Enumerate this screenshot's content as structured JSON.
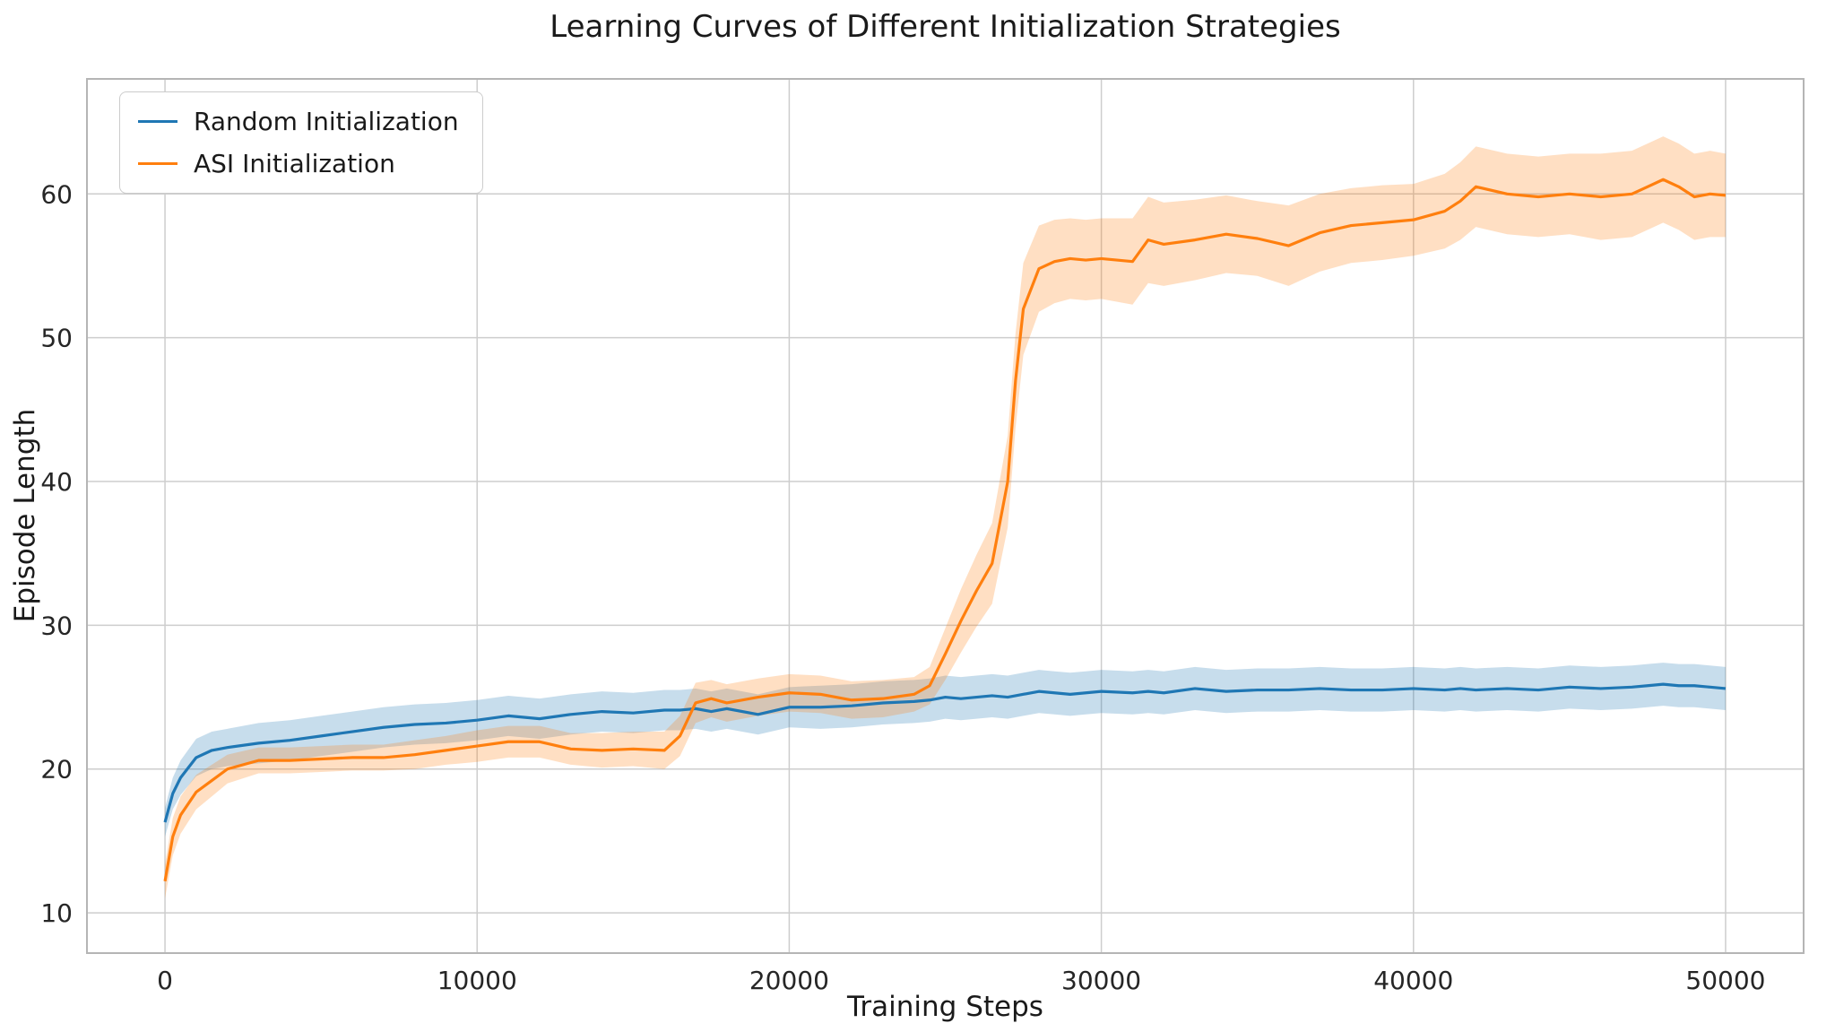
{
  "chart_data": {
    "type": "line",
    "title": "Learning Curves of Different Initialization Strategies",
    "xlabel": "Training Steps",
    "ylabel": "Episode Length",
    "xlim": [
      -2500,
      52500
    ],
    "ylim": [
      7.2,
      68.0
    ],
    "xticks": [
      0,
      10000,
      20000,
      30000,
      40000,
      50000
    ],
    "yticks": [
      10,
      20,
      30,
      40,
      50,
      60
    ],
    "grid_on": true,
    "legend_position": "upper left",
    "grid_color": "#cdcdcd",
    "spine_color": "#b5b5b5",
    "tick_color": "#262626",
    "x": [
      0,
      250,
      500,
      1000,
      1500,
      2000,
      3000,
      4000,
      5000,
      6000,
      7000,
      8000,
      9000,
      10000,
      11000,
      12000,
      13000,
      14000,
      15000,
      16000,
      16500,
      17000,
      17500,
      18000,
      19000,
      20000,
      21000,
      22000,
      23000,
      24000,
      24500,
      25000,
      25500,
      26000,
      26500,
      27000,
      27250,
      27500,
      28000,
      28500,
      29000,
      29500,
      30000,
      31000,
      31500,
      32000,
      33000,
      34000,
      35000,
      36000,
      37000,
      38000,
      39000,
      40000,
      41000,
      41500,
      42000,
      43000,
      44000,
      45000,
      46000,
      47000,
      47500,
      48000,
      48500,
      49000,
      49500,
      50000
    ],
    "series": [
      {
        "name": "Random Initialization",
        "color": "#1f77b4",
        "mean": [
          16.3,
          18.3,
          19.4,
          20.8,
          21.3,
          21.5,
          21.8,
          22.0,
          22.3,
          22.6,
          22.9,
          23.1,
          23.2,
          23.4,
          23.7,
          23.5,
          23.8,
          24.0,
          23.9,
          24.1,
          24.1,
          24.2,
          24.0,
          24.2,
          23.8,
          24.3,
          24.3,
          24.4,
          24.6,
          24.7,
          24.8,
          25.0,
          24.9,
          25.0,
          25.1,
          25.0,
          25.1,
          25.2,
          25.4,
          25.3,
          25.2,
          25.3,
          25.4,
          25.3,
          25.4,
          25.3,
          25.6,
          25.4,
          25.5,
          25.5,
          25.6,
          25.5,
          25.5,
          25.6,
          25.5,
          25.6,
          25.5,
          25.6,
          25.5,
          25.7,
          25.6,
          25.7,
          25.8,
          25.9,
          25.8,
          25.8,
          25.7,
          25.6
        ],
        "band": [
          1.0,
          1.1,
          1.2,
          1.3,
          1.3,
          1.3,
          1.4,
          1.4,
          1.4,
          1.4,
          1.4,
          1.4,
          1.4,
          1.4,
          1.4,
          1.4,
          1.4,
          1.4,
          1.4,
          1.4,
          1.4,
          1.4,
          1.4,
          1.4,
          1.4,
          1.4,
          1.5,
          1.5,
          1.5,
          1.5,
          1.5,
          1.5,
          1.5,
          1.5,
          1.5,
          1.5,
          1.5,
          1.5,
          1.5,
          1.5,
          1.5,
          1.5,
          1.5,
          1.5,
          1.5,
          1.5,
          1.5,
          1.5,
          1.5,
          1.5,
          1.5,
          1.5,
          1.5,
          1.5,
          1.5,
          1.5,
          1.5,
          1.5,
          1.5,
          1.5,
          1.5,
          1.5,
          1.5,
          1.5,
          1.5,
          1.5,
          1.5,
          1.5
        ]
      },
      {
        "name": "ASI Initialization",
        "color": "#ff7f0e",
        "mean": [
          12.2,
          15.3,
          16.8,
          18.4,
          19.2,
          20.0,
          20.6,
          20.6,
          20.7,
          20.8,
          20.8,
          21.0,
          21.3,
          21.6,
          21.9,
          21.9,
          21.4,
          21.3,
          21.4,
          21.3,
          22.3,
          24.6,
          24.9,
          24.6,
          25.0,
          25.3,
          25.2,
          24.8,
          24.9,
          25.2,
          25.8,
          28.0,
          30.3,
          32.4,
          34.3,
          40.0,
          47.0,
          52.0,
          54.8,
          55.3,
          55.5,
          55.4,
          55.5,
          55.3,
          56.8,
          56.5,
          56.8,
          57.2,
          56.9,
          56.4,
          57.3,
          57.8,
          58.0,
          58.2,
          58.8,
          59.5,
          60.5,
          60.0,
          59.8,
          60.0,
          59.8,
          60.0,
          60.5,
          61.0,
          60.5,
          59.8,
          60.0,
          59.9
        ],
        "band": [
          1.2,
          1.3,
          1.3,
          1.2,
          1.1,
          1.0,
          0.9,
          0.9,
          0.9,
          0.9,
          0.9,
          1.0,
          1.0,
          1.1,
          1.1,
          1.1,
          1.1,
          1.2,
          1.2,
          1.3,
          1.4,
          1.4,
          1.3,
          1.3,
          1.3,
          1.3,
          1.3,
          1.3,
          1.3,
          1.2,
          1.3,
          1.8,
          2.2,
          2.5,
          2.8,
          3.2,
          3.3,
          3.2,
          3.0,
          2.9,
          2.8,
          2.8,
          2.8,
          3.0,
          3.0,
          2.9,
          2.8,
          2.7,
          2.6,
          2.8,
          2.7,
          2.6,
          2.6,
          2.5,
          2.6,
          2.7,
          2.8,
          2.8,
          2.8,
          2.8,
          3.0,
          3.0,
          3.0,
          3.0,
          3.0,
          3.0,
          3.0,
          2.9
        ]
      }
    ]
  }
}
